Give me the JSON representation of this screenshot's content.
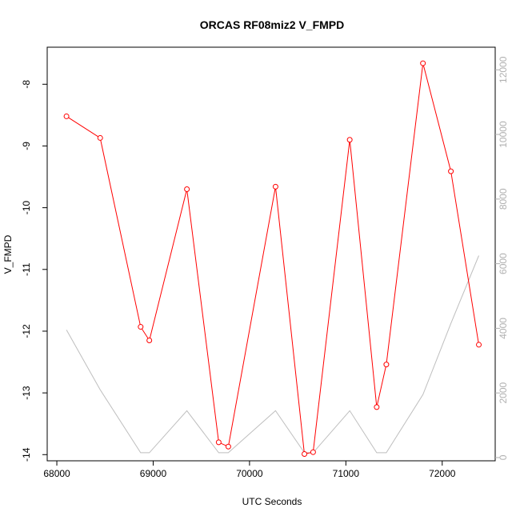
{
  "chart_data": {
    "type": "line",
    "title": "ORCAS RF08miz2 V_FMPD",
    "xlabel": "UTC Seconds",
    "ylabel": "V_FMPD",
    "xlim": [
      67900,
      72550
    ],
    "ylim": [
      -14.1,
      -7.4
    ],
    "x_ticks": [
      68000,
      69000,
      70000,
      71000,
      72000
    ],
    "y_ticks": [
      -14,
      -13,
      -12,
      -11,
      -10,
      -9,
      -8
    ],
    "y2lim": [
      -100,
      12700
    ],
    "y2_ticks": [
      0,
      2000,
      4000,
      6000,
      8000,
      10000,
      12000
    ],
    "colors": {
      "primary": "#ff0000",
      "secondary": "#bebebe",
      "axis": "#000000",
      "axis2": "#b0b0b0"
    },
    "series": [
      {
        "axis": "left",
        "color": "#ff0000",
        "marker": "open-circle",
        "x": [
          68100,
          68450,
          68870,
          68960,
          69350,
          69680,
          69780,
          70270,
          70570,
          70660,
          71040,
          71320,
          71420,
          71800,
          72090,
          72380
        ],
        "values": [
          -8.52,
          -8.87,
          -11.93,
          -12.15,
          -9.7,
          -13.8,
          -13.87,
          -9.66,
          -13.99,
          -13.96,
          -8.9,
          -13.23,
          -12.54,
          -7.66,
          -9.41,
          -12.22
        ]
      },
      {
        "axis": "right",
        "color": "#bebebe",
        "marker": "none",
        "x": [
          68100,
          68450,
          68870,
          68960,
          69350,
          69680,
          69780,
          70270,
          70570,
          70660,
          71040,
          71320,
          71420,
          71800,
          72090,
          72380
        ],
        "values": [
          3950,
          2100,
          150,
          150,
          1450,
          150,
          150,
          1450,
          150,
          150,
          1450,
          150,
          150,
          1950,
          4150,
          6250
        ]
      }
    ]
  }
}
